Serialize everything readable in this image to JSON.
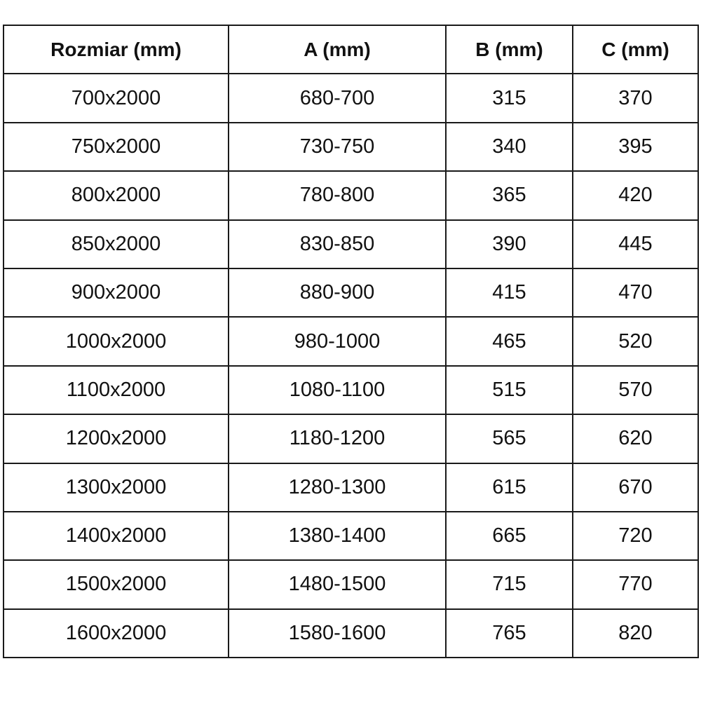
{
  "table": {
    "headers": [
      "Rozmiar (mm)",
      "A (mm)",
      "B (mm)",
      "C (mm)"
    ],
    "rows": [
      [
        "700x2000",
        "680-700",
        "315",
        "370"
      ],
      [
        "750x2000",
        "730-750",
        "340",
        "395"
      ],
      [
        "800x2000",
        "780-800",
        "365",
        "420"
      ],
      [
        "850x2000",
        "830-850",
        "390",
        "445"
      ],
      [
        "900x2000",
        "880-900",
        "415",
        "470"
      ],
      [
        "1000x2000",
        "980-1000",
        "465",
        "520"
      ],
      [
        "1100x2000",
        "1080-1100",
        "515",
        "570"
      ],
      [
        "1200x2000",
        "1180-1200",
        "565",
        "620"
      ],
      [
        "1300x2000",
        "1280-1300",
        "615",
        "670"
      ],
      [
        "1400x2000",
        "1380-1400",
        "665",
        "720"
      ],
      [
        "1500x2000",
        "1480-1500",
        "715",
        "770"
      ],
      [
        "1600x2000",
        "1580-1600",
        "765",
        "820"
      ]
    ]
  }
}
